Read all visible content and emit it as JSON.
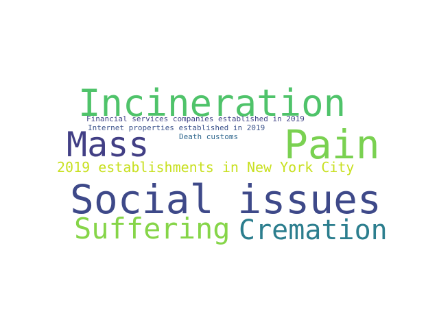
{
  "word_cloud": {
    "words": [
      {
        "id": "incineration",
        "text": "Incineration",
        "color": "#4fc36a"
      },
      {
        "id": "mass",
        "text": "Mass",
        "color": "#423f85"
      },
      {
        "id": "pain",
        "text": "Pain",
        "color": "#7ad151"
      },
      {
        "id": "fin",
        "text": "Financial services companies established in 2019",
        "color": "#414487"
      },
      {
        "id": "internet",
        "text": "Internet properties established in 2019",
        "color": "#3b528b"
      },
      {
        "id": "death",
        "text": "Death customs",
        "color": "#31688e"
      },
      {
        "id": "nyc",
        "text": "2019 establishments in New York City",
        "color": "#c8e020"
      },
      {
        "id": "social",
        "text": "Social issues",
        "color": "#3e4989"
      },
      {
        "id": "suffering",
        "text": "Suffering",
        "color": "#86d549"
      },
      {
        "id": "cremation",
        "text": "Cremation",
        "color": "#2c7e8e"
      }
    ]
  }
}
